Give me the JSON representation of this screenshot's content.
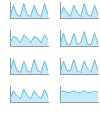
{
  "chart_data": [
    {
      "type": "line",
      "categories": [
        null,
        null,
        null,
        null,
        null,
        null,
        null,
        null,
        null,
        null,
        null,
        null
      ],
      "series": [
        {
          "color": "#5bbde6",
          "values": [
            1,
            8,
            2,
            1,
            9,
            2,
            1,
            8,
            2,
            1,
            9,
            2
          ]
        }
      ],
      "ylim": [
        0,
        10
      ],
      "yticks": [
        0,
        10
      ],
      "grid": false,
      "tick_labels": false
    },
    {
      "type": "line",
      "categories": [
        null,
        null,
        null,
        null,
        null,
        null,
        null,
        null,
        null,
        null,
        null,
        null
      ],
      "series": [
        {
          "color": "#5bbde6",
          "values": [
            1,
            7,
            3,
            1,
            8,
            3,
            1,
            9,
            2,
            1,
            8,
            2
          ]
        }
      ],
      "ylim": [
        0,
        10
      ],
      "yticks": [
        0,
        10
      ],
      "grid": false,
      "tick_labels": false
    },
    {
      "type": "line",
      "categories": [
        null,
        null,
        null,
        null,
        null,
        null,
        null,
        null,
        null,
        null,
        null,
        null
      ],
      "series": [
        {
          "color": "#5bbde6",
          "values": [
            2,
            6,
            5,
            2,
            7,
            5,
            2,
            6,
            5,
            2,
            7,
            4
          ]
        }
      ],
      "ylim": [
        0,
        10
      ],
      "yticks": [
        0,
        10
      ],
      "grid": false,
      "tick_labels": false
    },
    {
      "type": "line",
      "categories": [
        null,
        null,
        null,
        null,
        null,
        null,
        null,
        null,
        null,
        null,
        null,
        null
      ],
      "series": [
        {
          "color": "#5bbde6",
          "values": [
            1,
            8,
            1,
            1,
            8,
            1,
            2,
            9,
            1,
            1,
            8,
            1
          ]
        }
      ],
      "ylim": [
        0,
        10
      ],
      "yticks": [
        0,
        10
      ],
      "grid": false,
      "tick_labels": false
    },
    {
      "type": "line",
      "categories": [
        null,
        null,
        null,
        null,
        null,
        null,
        null,
        null,
        null,
        null,
        null,
        null
      ],
      "series": [
        {
          "color": "#5bbde6",
          "values": [
            1,
            9,
            2,
            1,
            8,
            2,
            1,
            9,
            2,
            1,
            8,
            2
          ]
        }
      ],
      "ylim": [
        0,
        10
      ],
      "yticks": [
        0,
        10
      ],
      "grid": false,
      "tick_labels": false
    },
    {
      "type": "line",
      "categories": [
        null,
        null,
        null,
        null,
        null,
        null,
        null,
        null,
        null,
        null,
        null,
        null
      ],
      "series": [
        {
          "color": "#5bbde6",
          "values": [
            1,
            8,
            2,
            2,
            9,
            2,
            1,
            8,
            3,
            1,
            9,
            2
          ]
        }
      ],
      "ylim": [
        0,
        10
      ],
      "yticks": [
        0,
        10
      ],
      "grid": false,
      "tick_labels": false
    },
    {
      "type": "line",
      "categories": [
        null,
        null,
        null,
        null,
        null,
        null,
        null,
        null,
        null,
        null,
        null,
        null
      ],
      "series": [
        {
          "color": "#5bbde6",
          "values": [
            2,
            7,
            4,
            2,
            8,
            4,
            2,
            7,
            4,
            2,
            8,
            3
          ]
        }
      ],
      "ylim": [
        0,
        10
      ],
      "yticks": [
        0,
        10
      ],
      "grid": false,
      "tick_labels": false
    },
    {
      "type": "line",
      "categories": [
        null,
        null,
        null,
        null,
        null,
        null,
        null,
        null,
        null,
        null,
        null,
        null
      ],
      "series": [
        {
          "color": "#5bbde6",
          "values": [
            6,
            7,
            6,
            6,
            7,
            6,
            6,
            7,
            6,
            6,
            7,
            6
          ]
        }
      ],
      "ylim": [
        0,
        10
      ],
      "yticks": [
        0,
        10
      ],
      "grid": false,
      "tick_labels": false
    }
  ]
}
